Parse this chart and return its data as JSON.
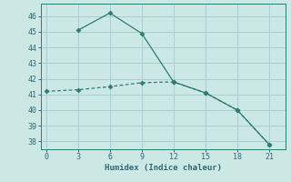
{
  "xlabel": "Humidex (Indice chaleur)",
  "line1_x": [
    0,
    3,
    6,
    9,
    12,
    15,
    18,
    21
  ],
  "line1_y": [
    41.2,
    41.3,
    41.5,
    41.75,
    41.8,
    41.1,
    40.0,
    37.8
  ],
  "line2_x": [
    3,
    6,
    9,
    12,
    15,
    18,
    21
  ],
  "line2_y": [
    45.1,
    46.2,
    44.9,
    41.8,
    41.1,
    40.0,
    37.8
  ],
  "line_color": "#2e7d6e",
  "bg_color": "#cce8e4",
  "grid_color": "#aacfcb",
  "ylim": [
    37.5,
    46.8
  ],
  "xlim": [
    -0.5,
    22.5
  ],
  "yticks": [
    38,
    39,
    40,
    41,
    42,
    43,
    44,
    45,
    46
  ],
  "xticks": [
    0,
    3,
    6,
    9,
    12,
    15,
    18,
    21
  ],
  "tick_color": "#336677",
  "label_color": "#336677"
}
